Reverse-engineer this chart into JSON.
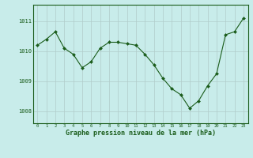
{
  "x": [
    0,
    1,
    2,
    3,
    4,
    5,
    6,
    7,
    8,
    9,
    10,
    11,
    12,
    13,
    14,
    15,
    16,
    17,
    18,
    19,
    20,
    21,
    22,
    23
  ],
  "y": [
    1010.2,
    1010.4,
    1010.65,
    1010.1,
    1009.9,
    1009.45,
    1009.65,
    1010.1,
    1010.3,
    1010.3,
    1010.25,
    1010.2,
    1009.9,
    1009.55,
    1009.1,
    1008.75,
    1008.55,
    1008.1,
    1008.35,
    1008.85,
    1009.25,
    1010.55,
    1010.65,
    1011.1
  ],
  "bg_color": "#c8ecea",
  "grid_color": "#b0ccca",
  "line_color": "#1a5c1a",
  "marker_color": "#1a5c1a",
  "xlabel": "Graphe pression niveau de la mer (hPa)",
  "yticks": [
    1008,
    1009,
    1010,
    1011
  ],
  "ylim": [
    1007.6,
    1011.55
  ],
  "xlim": [
    -0.5,
    23.5
  ]
}
